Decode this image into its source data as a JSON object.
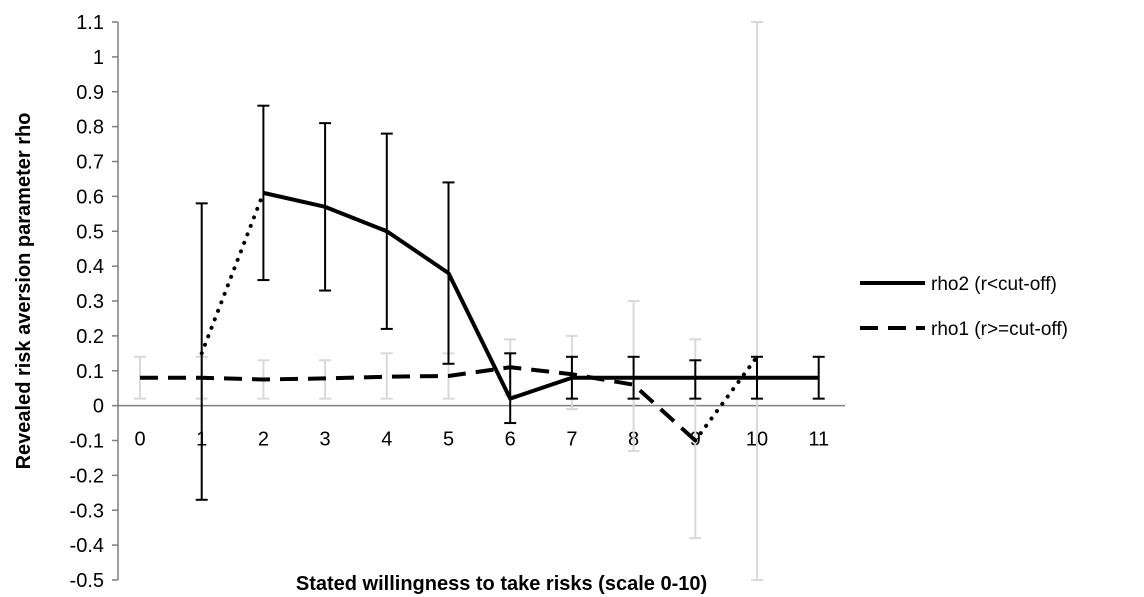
{
  "chart_data": {
    "type": "line",
    "title": "",
    "xlabel": "Stated willingness to take risks (scale 0-10)",
    "ylabel": "Revealed risk aversion parameter rho",
    "x_categories": [
      "0",
      "1",
      "2",
      "3",
      "4",
      "5",
      "6",
      "7",
      "8",
      "9",
      "10",
      "11"
    ],
    "y_ticks": [
      "1.1",
      "1",
      "0.9",
      "0.8",
      "0.7",
      "0.6",
      "0.5",
      "0.4",
      "0.3",
      "0.2",
      "0.1",
      "0",
      "-0.1",
      "-0.2",
      "-0.3",
      "-0.4",
      "-0.5"
    ],
    "ylim": [
      -0.5,
      1.1
    ],
    "grid": false,
    "legend_position": "right",
    "series": [
      {
        "name": "rho2 (r<cut-off)",
        "color": "#000000",
        "line_style": "solid",
        "x": [
          2,
          3,
          4,
          5,
          6,
          7,
          8,
          9,
          10,
          11
        ],
        "y": [
          0.61,
          0.57,
          0.5,
          0.38,
          0.02,
          0.08,
          0.08,
          0.08,
          0.08,
          0.08
        ],
        "error_low": [
          0.36,
          0.33,
          0.22,
          0.12,
          null,
          0.02,
          null,
          null,
          0.02,
          0.02
        ],
        "error_high": [
          0.86,
          0.81,
          0.78,
          0.64,
          null,
          0.14,
          null,
          null,
          0.14,
          0.14
        ],
        "error_color": "#000000"
      },
      {
        "name": "rho1 (r>=cut-off)",
        "color": "#000000",
        "line_style": "dashed",
        "x": [
          0,
          1,
          2,
          3,
          4,
          5,
          6,
          7,
          8,
          9
        ],
        "y": [
          0.08,
          0.08,
          0.075,
          0.078,
          0.083,
          0.085,
          0.11,
          0.09,
          0.06,
          -0.1
        ],
        "error_low": [
          0.02,
          0.02,
          0.02,
          0.02,
          0.02,
          0.02,
          0.03,
          -0.01,
          -0.13,
          -0.38
        ],
        "error_high": [
          0.14,
          0.14,
          0.13,
          0.13,
          0.15,
          0.15,
          0.19,
          0.2,
          0.3,
          0.19
        ],
        "error_color": "#d9d9d9"
      }
    ],
    "connectors": [
      {
        "from": [
          1,
          0.15
        ],
        "to": [
          2,
          0.61
        ],
        "style": "dotted"
      },
      {
        "from": [
          9,
          -0.1
        ],
        "to": [
          10,
          0.14
        ],
        "style": "dotted"
      }
    ],
    "extra_error_bars": [
      {
        "x": 1,
        "low": -0.27,
        "high": 0.58,
        "color": "#000000"
      },
      {
        "x": 6,
        "low": -0.05,
        "high": 0.15,
        "color": "#000000"
      },
      {
        "x": 8,
        "low": 0.02,
        "high": 0.14,
        "color": "#000000"
      },
      {
        "x": 9,
        "low": 0.02,
        "high": 0.13,
        "color": "#000000"
      },
      {
        "x": 10,
        "low": -0.5,
        "high": 1.1,
        "color": "#d9d9d9"
      }
    ]
  }
}
